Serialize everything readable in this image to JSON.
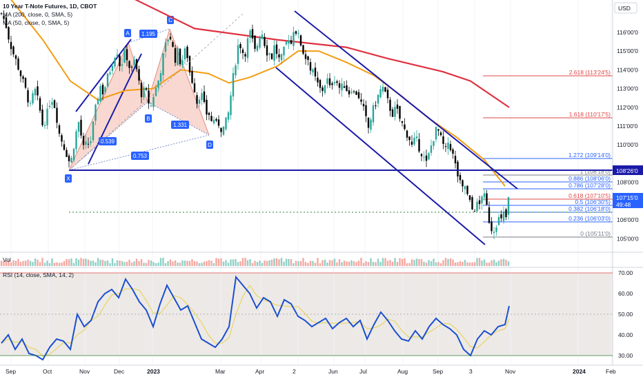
{
  "header": {
    "symbol_line": "10 Year T-Note Futures, 1D, CBOT",
    "ma1_line": "MA (200, close, 0, SMA, 5)",
    "ma2_line": "MA (50, close, 0, SMA, 5)",
    "currency": "USD",
    "volume_label": "Vol",
    "rsi_line": "RSI (14, close, SMA, 14, 2)"
  },
  "colors": {
    "candle_up": "#26a69a",
    "candle_down": "#000000",
    "ma200": "#e0303f",
    "ma50": "#f39c12",
    "channel": "#1a1aa8",
    "fib_red": "#e04545",
    "fib_blue": "#2962ff",
    "fib_gray": "#787b86",
    "harmonic_fill": "#f2b8aa",
    "harmonic_line": "#1a1aa8",
    "rsi_line": "#1a4fcf",
    "rsi_ma": "#e6d24a",
    "rsi_band": "#ede9e6",
    "price_tag": "#2962ff"
  },
  "chart_data": {
    "type": "candlestick",
    "price_axis": {
      "ticks": [
        "116'00'0",
        "115'00'0",
        "114'00'0",
        "113'00'0",
        "112'00'0",
        "111'00'0",
        "110'00'0",
        "108'00'0",
        "106'00'0",
        "105'00'0"
      ],
      "ylim": [
        104.5,
        117.5
      ]
    },
    "time_axis": {
      "labels": [
        "Sep",
        "Oct",
        "Nov",
        "Dec",
        "2023",
        "Mar",
        "Apr",
        "2",
        "Jun",
        "Jul",
        "Aug",
        "Sep",
        "3",
        "Nov",
        "2024",
        "Feb"
      ]
    },
    "price_labels": {
      "horizontal_level": "108'26'0",
      "last_price": "107'15'0",
      "countdown": "49:48"
    },
    "close_path": [
      [
        0,
        117.0
      ],
      [
        6,
        116.5
      ],
      [
        12,
        115.5
      ],
      [
        18,
        114.8
      ],
      [
        24,
        114.2
      ],
      [
        30,
        113.5
      ],
      [
        36,
        112.8
      ],
      [
        42,
        112.0
      ],
      [
        48,
        113.0
      ],
      [
        54,
        112.2
      ],
      [
        60,
        111.0
      ],
      [
        66,
        111.6
      ],
      [
        72,
        112.6
      ],
      [
        78,
        112.0
      ],
      [
        84,
        110.6
      ],
      [
        90,
        110.0
      ],
      [
        96,
        109.4
      ],
      [
        100,
        108.9
      ],
      [
        104,
        109.8
      ],
      [
        108,
        110.6
      ],
      [
        112,
        111.2
      ],
      [
        116,
        110.4
      ],
      [
        120,
        109.6
      ],
      [
        124,
        110.2
      ],
      [
        128,
        109.9
      ],
      [
        132,
        110.8
      ],
      [
        136,
        111.8
      ],
      [
        140,
        112.6
      ],
      [
        144,
        113.2
      ],
      [
        148,
        112.7
      ],
      [
        152,
        113.4
      ],
      [
        156,
        113.8
      ],
      [
        160,
        114.3
      ],
      [
        164,
        114.8
      ],
      [
        168,
        115.0
      ],
      [
        172,
        114.2
      ],
      [
        176,
        114.5
      ],
      [
        180,
        115.0
      ],
      [
        184,
        114.4
      ],
      [
        188,
        113.8
      ],
      [
        192,
        114.5
      ],
      [
        196,
        114.0
      ],
      [
        200,
        113.2
      ],
      [
        204,
        112.6
      ],
      [
        208,
        113.0
      ],
      [
        212,
        112.5
      ],
      [
        216,
        111.9
      ],
      [
        220,
        112.6
      ],
      [
        224,
        113.0
      ],
      [
        228,
        113.5
      ],
      [
        232,
        114.2
      ],
      [
        236,
        115.0
      ],
      [
        240,
        115.6
      ],
      [
        244,
        115.9
      ],
      [
        248,
        115.2
      ],
      [
        252,
        114.6
      ],
      [
        256,
        115.0
      ],
      [
        260,
        114.3
      ],
      [
        264,
        114.7
      ],
      [
        268,
        115.2
      ],
      [
        272,
        114.0
      ],
      [
        276,
        113.5
      ],
      [
        280,
        113.0
      ],
      [
        284,
        112.2
      ],
      [
        288,
        112.8
      ],
      [
        292,
        112.5
      ],
      [
        296,
        111.6
      ],
      [
        300,
        111.8
      ],
      [
        304,
        111.2
      ],
      [
        308,
        111.4
      ],
      [
        312,
        111.0
      ],
      [
        316,
        111.2
      ],
      [
        320,
        110.7
      ],
      [
        324,
        111.1
      ],
      [
        328,
        111.4
      ],
      [
        332,
        112.5
      ],
      [
        336,
        113.6
      ],
      [
        340,
        114.6
      ],
      [
        344,
        115.5
      ],
      [
        348,
        115.2
      ],
      [
        352,
        114.7
      ],
      [
        356,
        115.4
      ],
      [
        360,
        116.0
      ],
      [
        364,
        115.5
      ],
      [
        368,
        114.9
      ],
      [
        372,
        115.5
      ],
      [
        376,
        116.2
      ],
      [
        380,
        115.7
      ],
      [
        384,
        115.0
      ],
      [
        388,
        114.9
      ],
      [
        392,
        114.7
      ],
      [
        396,
        115.3
      ],
      [
        400,
        114.8
      ],
      [
        404,
        114.4
      ],
      [
        408,
        114.8
      ],
      [
        412,
        115.3
      ],
      [
        416,
        115.8
      ],
      [
        420,
        115.4
      ],
      [
        424,
        116.3
      ],
      [
        428,
        116.0
      ],
      [
        432,
        115.6
      ],
      [
        436,
        115.2
      ],
      [
        440,
        114.6
      ],
      [
        444,
        114.8
      ],
      [
        448,
        114.0
      ],
      [
        452,
        113.8
      ],
      [
        456,
        113.4
      ],
      [
        460,
        113.1
      ],
      [
        464,
        112.8
      ],
      [
        468,
        113.2
      ],
      [
        472,
        113.5
      ],
      [
        476,
        113.0
      ],
      [
        480,
        113.4
      ],
      [
        484,
        113.6
      ],
      [
        488,
        113.2
      ],
      [
        492,
        112.9
      ],
      [
        496,
        113.3
      ],
      [
        500,
        113.0
      ],
      [
        504,
        112.8
      ],
      [
        508,
        113.1
      ],
      [
        512,
        112.6
      ],
      [
        516,
        112.9
      ],
      [
        520,
        112.3
      ],
      [
        524,
        112.0
      ],
      [
        528,
        111.4
      ],
      [
        532,
        110.9
      ],
      [
        536,
        111.5
      ],
      [
        540,
        112.0
      ],
      [
        544,
        112.4
      ],
      [
        548,
        112.8
      ],
      [
        552,
        113.1
      ],
      [
        556,
        112.7
      ],
      [
        560,
        112.3
      ],
      [
        564,
        111.9
      ],
      [
        568,
        111.6
      ],
      [
        572,
        112.0
      ],
      [
        576,
        111.5
      ],
      [
        580,
        111.2
      ],
      [
        584,
        110.8
      ],
      [
        588,
        110.6
      ],
      [
        592,
        110.3
      ],
      [
        596,
        109.8
      ],
      [
        600,
        110.4
      ],
      [
        604,
        110.0
      ],
      [
        608,
        109.7
      ],
      [
        612,
        109.3
      ],
      [
        616,
        109.0
      ],
      [
        620,
        109.5
      ],
      [
        624,
        110.1
      ],
      [
        628,
        110.6
      ],
      [
        632,
        110.9
      ],
      [
        636,
        110.4
      ],
      [
        640,
        110.0
      ],
      [
        644,
        109.7
      ],
      [
        648,
        110.2
      ],
      [
        652,
        109.8
      ],
      [
        656,
        109.2
      ],
      [
        660,
        108.6
      ],
      [
        664,
        108.0
      ],
      [
        668,
        107.6
      ],
      [
        672,
        107.8
      ],
      [
        676,
        107.2
      ],
      [
        680,
        106.8
      ],
      [
        684,
        106.4
      ],
      [
        688,
        106.9
      ],
      [
        692,
        106.6
      ],
      [
        696,
        107.4
      ],
      [
        700,
        107.2
      ],
      [
        704,
        106.6
      ],
      [
        708,
        105.8
      ],
      [
        712,
        105.4
      ],
      [
        716,
        105.7
      ],
      [
        720,
        106.1
      ],
      [
        724,
        105.9
      ],
      [
        728,
        106.3
      ],
      [
        732,
        106.1
      ],
      [
        736,
        107.4
      ]
    ],
    "ma200_path": [
      [
        0,
        119.8
      ],
      [
        180,
        118.0
      ],
      [
        280,
        116.2
      ],
      [
        400,
        115.6
      ],
      [
        500,
        115.2
      ],
      [
        560,
        114.6
      ],
      [
        640,
        113.9
      ],
      [
        680,
        113.4
      ],
      [
        720,
        112.4
      ],
      [
        736,
        112.0
      ]
    ],
    "ma50_path": [
      [
        0,
        118.4
      ],
      [
        60,
        115.6
      ],
      [
        100,
        113.4
      ],
      [
        140,
        112.4
      ],
      [
        180,
        112.9
      ],
      [
        220,
        113.0
      ],
      [
        260,
        114.0
      ],
      [
        300,
        113.8
      ],
      [
        330,
        113.3
      ],
      [
        360,
        113.6
      ],
      [
        400,
        114.2
      ],
      [
        430,
        115.0
      ],
      [
        460,
        115.0
      ],
      [
        500,
        114.4
      ],
      [
        540,
        113.7
      ],
      [
        580,
        112.6
      ],
      [
        620,
        111.4
      ],
      [
        660,
        110.4
      ],
      [
        700,
        109.2
      ],
      [
        730,
        107.8
      ]
    ],
    "harmonic_pattern": {
      "points": [
        "X",
        "A",
        "B",
        "C",
        "D"
      ],
      "ratios": [
        "1.195",
        "0.539",
        "1.331",
        "0.753"
      ]
    },
    "fib_retracement": {
      "levels": [
        {
          "ratio": "2.618",
          "price": "113'24'5"
        },
        {
          "ratio": "1.618",
          "price": "110'17'5"
        },
        {
          "ratio": "1.272",
          "price": "109'14'0"
        },
        {
          "ratio": "1",
          "price": "108'18'0"
        },
        {
          "ratio": "0.886",
          "price": "108'06'0"
        },
        {
          "ratio": "0.786",
          "price": "107'28'0"
        },
        {
          "ratio": "0.618",
          "price": "107'10'5"
        },
        {
          "ratio": "0.5",
          "price": "106'30'5"
        },
        {
          "ratio": "0.382",
          "price": "106'18'0"
        },
        {
          "ratio": "0.236",
          "price": "106'03'0"
        },
        {
          "ratio": "0",
          "price": "105'11'0"
        }
      ]
    },
    "volume": {
      "label": "Vol"
    },
    "rsi": {
      "ticks": [
        "70.00",
        "60.00",
        "50.00",
        "40.00",
        "30.00"
      ],
      "ylim": [
        26,
        72
      ],
      "band": [
        30,
        70
      ],
      "path": [
        [
          0,
          36
        ],
        [
          10,
          40
        ],
        [
          20,
          33
        ],
        [
          30,
          38
        ],
        [
          40,
          31
        ],
        [
          50,
          30
        ],
        [
          60,
          28
        ],
        [
          70,
          34
        ],
        [
          80,
          38
        ],
        [
          90,
          37
        ],
        [
          100,
          33
        ],
        [
          110,
          50
        ],
        [
          120,
          44
        ],
        [
          130,
          47
        ],
        [
          140,
          56
        ],
        [
          150,
          60
        ],
        [
          160,
          62
        ],
        [
          170,
          58
        ],
        [
          180,
          67
        ],
        [
          190,
          62
        ],
        [
          200,
          56
        ],
        [
          210,
          52
        ],
        [
          220,
          44
        ],
        [
          230,
          55
        ],
        [
          240,
          64
        ],
        [
          250,
          58
        ],
        [
          260,
          52
        ],
        [
          270,
          54
        ],
        [
          280,
          46
        ],
        [
          290,
          38
        ],
        [
          300,
          36
        ],
        [
          310,
          34
        ],
        [
          320,
          38
        ],
        [
          330,
          44
        ],
        [
          340,
          68
        ],
        [
          350,
          64
        ],
        [
          360,
          60
        ],
        [
          370,
          53
        ],
        [
          380,
          58
        ],
        [
          390,
          56
        ],
        [
          400,
          49
        ],
        [
          410,
          57
        ],
        [
          420,
          55
        ],
        [
          430,
          49
        ],
        [
          440,
          47
        ],
        [
          450,
          44
        ],
        [
          460,
          46
        ],
        [
          470,
          48
        ],
        [
          480,
          43
        ],
        [
          490,
          46
        ],
        [
          500,
          48
        ],
        [
          510,
          44
        ],
        [
          520,
          47
        ],
        [
          530,
          38
        ],
        [
          540,
          45
        ],
        [
          550,
          51
        ],
        [
          560,
          47
        ],
        [
          570,
          42
        ],
        [
          580,
          38
        ],
        [
          590,
          37
        ],
        [
          600,
          42
        ],
        [
          610,
          38
        ],
        [
          620,
          44
        ],
        [
          630,
          48
        ],
        [
          640,
          45
        ],
        [
          650,
          43
        ],
        [
          660,
          40
        ],
        [
          670,
          33
        ],
        [
          680,
          30
        ],
        [
          690,
          38
        ],
        [
          700,
          42
        ],
        [
          710,
          40
        ],
        [
          720,
          44
        ],
        [
          730,
          45
        ],
        [
          736,
          54
        ]
      ]
    }
  }
}
